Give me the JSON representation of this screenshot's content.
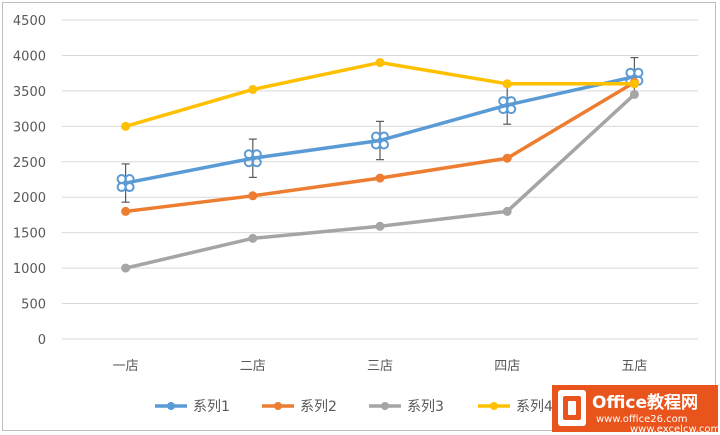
{
  "chart_data": {
    "type": "line",
    "categories": [
      "一店",
      "二店",
      "三店",
      "四店",
      "五店"
    ],
    "ylim": [
      0,
      4500
    ],
    "yticks": [
      0,
      500,
      1000,
      1500,
      2000,
      2500,
      3000,
      3500,
      4000,
      4500
    ],
    "grid": true,
    "legend_position": "bottom",
    "series": [
      {
        "name": "系列1",
        "color": "#5b9bd5",
        "values": [
          2200,
          2550,
          2800,
          3300,
          3700
        ],
        "error_bars": [
          270,
          270,
          270,
          270,
          270
        ],
        "marker": "clover"
      },
      {
        "name": "系列2",
        "color": "#ed7d31",
        "values": [
          1800,
          2020,
          2270,
          2550,
          3620
        ]
      },
      {
        "name": "系列3",
        "color": "#a5a5a5",
        "values": [
          1000,
          1420,
          1590,
          1800,
          3450
        ]
      },
      {
        "name": "系列4",
        "color": "#ffc000",
        "values": [
          3000,
          3520,
          3900,
          3600,
          3600
        ]
      }
    ]
  },
  "watermark": {
    "logo_text": "Office教程网",
    "url_text": "www.office26.com",
    "site_text": "www.excelcw.com"
  }
}
